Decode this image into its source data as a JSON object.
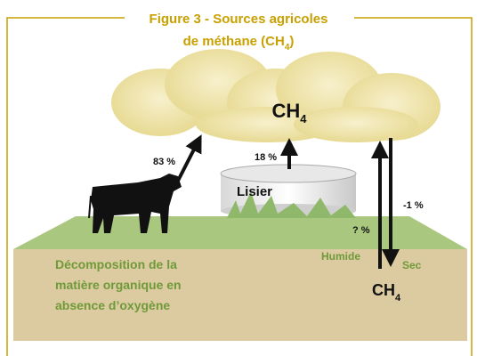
{
  "title": {
    "line1": "Figure 3  - Sources agricoles",
    "line2": "de méthane (CH",
    "line2_sub": "4",
    "line2_end": ")"
  },
  "cloud_label": {
    "base": "CH",
    "sub": "4"
  },
  "cow_label": "83 %",
  "manure": {
    "percent": "18 %",
    "label": "Lisier"
  },
  "soil": {
    "sink_percent": "-1 %",
    "source_percent": "? %",
    "wet": "Humide",
    "dry": "Sec",
    "gas": {
      "base": "CH",
      "sub": "4"
    },
    "description": [
      "Décomposition de la",
      "matière organique en",
      "absence d’oxygène"
    ]
  }
}
